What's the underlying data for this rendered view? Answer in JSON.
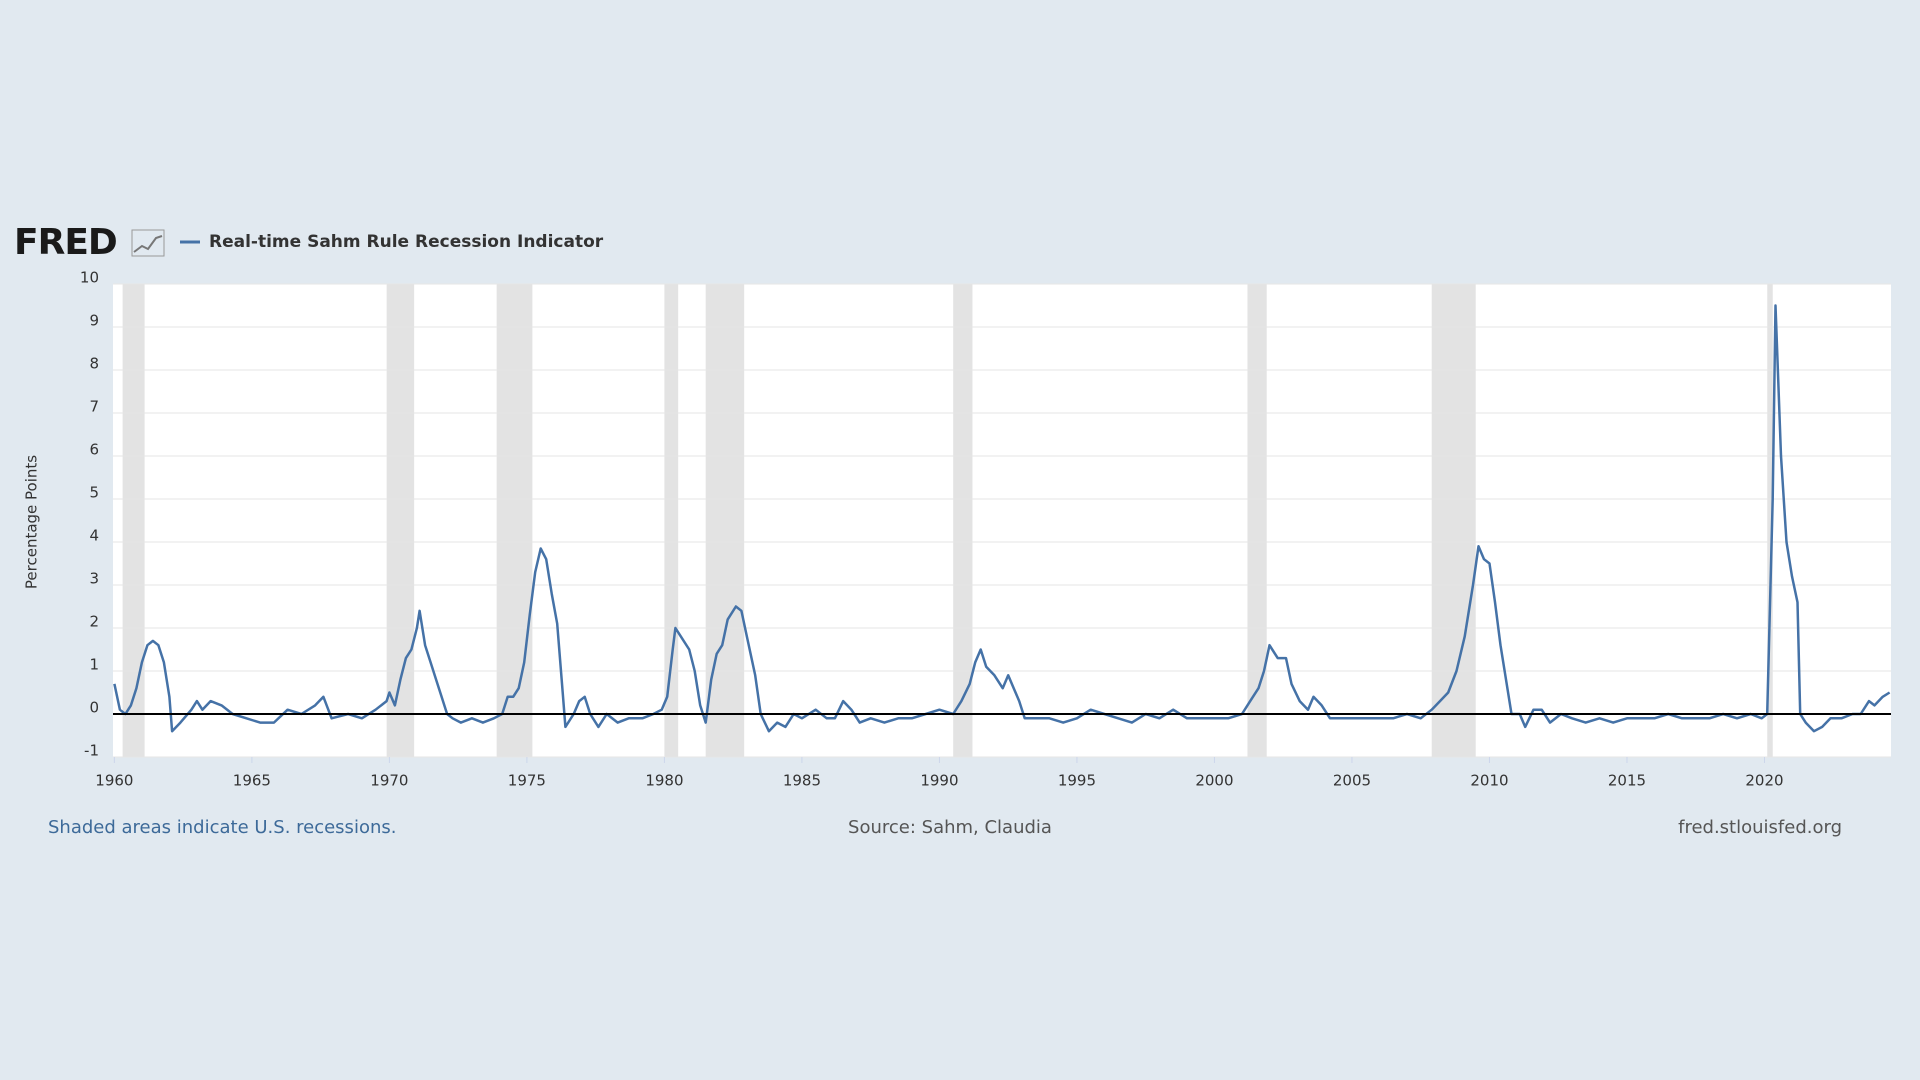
{
  "chart_data": {
    "type": "line",
    "logo": "FRED",
    "y_label": "Percentage Points",
    "notes": {
      "left": "Shaded areas indicate U.S. recessions.",
      "center": "Source: Sahm, Claudia",
      "right": "fred.stlouisfed.org"
    },
    "xlim": [
      1959.95,
      2024.6
    ],
    "ylim": [
      -1,
      10
    ],
    "xticks": [
      1960,
      1965,
      1970,
      1975,
      1980,
      1985,
      1990,
      1995,
      2000,
      2005,
      2010,
      2015,
      2020
    ],
    "yticks": [
      -1,
      0,
      1,
      2,
      3,
      4,
      5,
      6,
      7,
      8,
      9,
      10
    ],
    "grid": true,
    "recessions": [
      [
        1960.3,
        1961.1
      ],
      [
        1969.9,
        1970.9
      ],
      [
        1973.9,
        1975.2
      ],
      [
        1980.0,
        1980.5
      ],
      [
        1981.5,
        1982.9
      ],
      [
        1990.5,
        1991.2
      ],
      [
        2001.2,
        2001.9
      ],
      [
        2007.9,
        2009.5
      ],
      [
        2020.1,
        2020.3
      ]
    ],
    "x": [
      1960.0,
      1960.2,
      1960.4,
      1960.6,
      1960.8,
      1961.0,
      1961.2,
      1961.4,
      1961.6,
      1961.8,
      1962.0,
      1962.1,
      1962.4,
      1962.8,
      1963.0,
      1963.2,
      1963.5,
      1963.9,
      1964.3,
      1964.8,
      1965.3,
      1965.8,
      1966.3,
      1966.8,
      1967.3,
      1967.6,
      1967.9,
      1968.5,
      1969.0,
      1969.5,
      1969.9,
      1970.0,
      1970.2,
      1970.4,
      1970.6,
      1970.8,
      1971.0,
      1971.1,
      1971.3,
      1971.5,
      1971.7,
      1971.9,
      1972.1,
      1972.3,
      1972.6,
      1973.0,
      1973.4,
      1973.8,
      1974.1,
      1974.3,
      1974.5,
      1974.7,
      1974.9,
      1975.1,
      1975.3,
      1975.5,
      1975.7,
      1975.9,
      1976.1,
      1976.3,
      1976.4,
      1976.7,
      1976.9,
      1977.1,
      1977.3,
      1977.6,
      1977.9,
      1978.3,
      1978.7,
      1979.2,
      1979.6,
      1979.9,
      1980.1,
      1980.3,
      1980.4,
      1980.6,
      1980.9,
      1981.1,
      1981.3,
      1981.5,
      1981.7,
      1981.9,
      1982.1,
      1982.3,
      1982.6,
      1982.8,
      1983.0,
      1983.3,
      1983.5,
      1983.8,
      1984.1,
      1984.4,
      1984.7,
      1985.0,
      1985.5,
      1985.9,
      1986.2,
      1986.5,
      1986.8,
      1987.1,
      1987.5,
      1988.0,
      1988.5,
      1989.0,
      1989.5,
      1990.0,
      1990.5,
      1990.8,
      1991.1,
      1991.3,
      1991.5,
      1991.7,
      1992.0,
      1992.3,
      1992.5,
      1992.7,
      1992.9,
      1993.1,
      1993.5,
      1994.0,
      1994.5,
      1995.0,
      1995.5,
      1996.0,
      1996.5,
      1997.0,
      1997.5,
      1998.0,
      1998.5,
      1999.0,
      1999.5,
      2000.0,
      2000.5,
      2001.0,
      2001.3,
      2001.6,
      2001.8,
      2002.0,
      2002.3,
      2002.6,
      2002.8,
      2003.1,
      2003.4,
      2003.6,
      2003.9,
      2004.2,
      2004.6,
      2005.0,
      2005.5,
      2006.0,
      2006.5,
      2007.0,
      2007.5,
      2007.9,
      2008.2,
      2008.5,
      2008.8,
      2009.1,
      2009.4,
      2009.6,
      2009.8,
      2010.0,
      2010.2,
      2010.4,
      2010.6,
      2010.8,
      2011.1,
      2011.3,
      2011.6,
      2011.9,
      2012.2,
      2012.6,
      2013.0,
      2013.5,
      2014.0,
      2014.5,
      2015.0,
      2015.5,
      2016.0,
      2016.5,
      2017.0,
      2017.5,
      2018.0,
      2018.5,
      2019.0,
      2019.5,
      2019.9,
      2020.1,
      2020.3,
      2020.4,
      2020.6,
      2020.8,
      2021.0,
      2021.2,
      2021.3,
      2021.5,
      2021.8,
      2022.1,
      2022.4,
      2022.8,
      2023.2,
      2023.5,
      2023.8,
      2024.0,
      2024.3,
      2024.55
    ],
    "series": [
      {
        "name": "Real-time Sahm Rule Recession Indicator",
        "color": "#4572a7",
        "values": [
          0.7,
          0.1,
          0.0,
          0.2,
          0.6,
          1.2,
          1.6,
          1.7,
          1.6,
          1.2,
          0.4,
          -0.4,
          -0.2,
          0.1,
          0.3,
          0.1,
          0.3,
          0.2,
          0.0,
          -0.1,
          -0.2,
          -0.2,
          0.1,
          0.0,
          0.2,
          0.4,
          -0.1,
          0.0,
          -0.1,
          0.1,
          0.3,
          0.5,
          0.2,
          0.8,
          1.3,
          1.5,
          2.0,
          2.4,
          1.6,
          1.2,
          0.8,
          0.4,
          0.0,
          -0.1,
          -0.2,
          -0.1,
          -0.2,
          -0.1,
          0.0,
          0.4,
          0.4,
          0.6,
          1.2,
          2.3,
          3.3,
          3.85,
          3.6,
          2.8,
          2.1,
          0.5,
          -0.3,
          0.0,
          0.3,
          0.4,
          0.0,
          -0.3,
          0.0,
          -0.2,
          -0.1,
          -0.1,
          0.0,
          0.1,
          0.4,
          1.5,
          2.0,
          1.8,
          1.5,
          1.0,
          0.2,
          -0.2,
          0.8,
          1.4,
          1.6,
          2.2,
          2.5,
          2.4,
          1.8,
          0.9,
          0.0,
          -0.4,
          -0.2,
          -0.3,
          0.0,
          -0.1,
          0.1,
          -0.1,
          -0.1,
          0.3,
          0.1,
          -0.2,
          -0.1,
          -0.2,
          -0.1,
          -0.1,
          0.0,
          0.1,
          0.0,
          0.3,
          0.7,
          1.2,
          1.5,
          1.1,
          0.9,
          0.6,
          0.9,
          0.6,
          0.3,
          -0.1,
          -0.1,
          -0.1,
          -0.2,
          -0.1,
          0.1,
          0.0,
          -0.1,
          -0.2,
          0.0,
          -0.1,
          0.1,
          -0.1,
          -0.1,
          -0.1,
          -0.1,
          0.0,
          0.3,
          0.6,
          1.0,
          1.6,
          1.3,
          1.3,
          0.7,
          0.3,
          0.1,
          0.4,
          0.2,
          -0.1,
          -0.1,
          -0.1,
          -0.1,
          -0.1,
          -0.1,
          0.0,
          -0.1,
          0.1,
          0.3,
          0.5,
          1.0,
          1.8,
          3.0,
          3.9,
          3.6,
          3.5,
          2.6,
          1.6,
          0.8,
          0.0,
          0.0,
          -0.3,
          0.1,
          0.1,
          -0.2,
          0.0,
          -0.1,
          -0.2,
          -0.1,
          -0.2,
          -0.1,
          -0.1,
          -0.1,
          0.0,
          -0.1,
          -0.1,
          -0.1,
          0.0,
          -0.1,
          0.0,
          -0.1,
          0.0,
          5.0,
          9.5,
          6.0,
          4.0,
          3.2,
          2.6,
          0.0,
          -0.2,
          -0.4,
          -0.3,
          -0.1,
          -0.1,
          0.0,
          0.0,
          0.3,
          0.2,
          0.4,
          0.5
        ]
      }
    ]
  }
}
